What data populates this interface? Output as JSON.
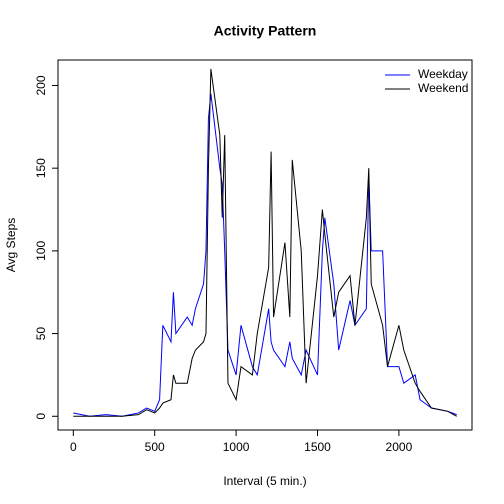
{
  "chart_data": {
    "type": "line",
    "title": "Activity Pattern",
    "x_label": "Interval (5 min.)",
    "y_label": "Avg Steps",
    "x": [
      0,
      100,
      200,
      300,
      400,
      450,
      500,
      530,
      550,
      600,
      615,
      630,
      700,
      730,
      750,
      800,
      815,
      830,
      845,
      900,
      915,
      930,
      950,
      1000,
      1030,
      1100,
      1130,
      1200,
      1215,
      1230,
      1300,
      1330,
      1345,
      1400,
      1430,
      1500,
      1530,
      1545,
      1600,
      1630,
      1700,
      1730,
      1800,
      1815,
      1830,
      1900,
      1930,
      2000,
      2030,
      2100,
      2130,
      2200,
      2300,
      2355
    ],
    "series": [
      {
        "name": "Weekday",
        "color": "#0000ff",
        "values": [
          2,
          0,
          1,
          0,
          2,
          5,
          3,
          10,
          55,
          45,
          75,
          50,
          60,
          55,
          65,
          80,
          100,
          180,
          195,
          150,
          140,
          100,
          40,
          25,
          55,
          30,
          25,
          65,
          45,
          40,
          30,
          45,
          35,
          25,
          40,
          25,
          100,
          120,
          80,
          40,
          70,
          55,
          65,
          145,
          100,
          100,
          30,
          30,
          20,
          25,
          10,
          5,
          3,
          1
        ]
      },
      {
        "name": "Weekend",
        "color": "#000000",
        "values": [
          0,
          0,
          0,
          0,
          1,
          4,
          2,
          5,
          8,
          10,
          25,
          20,
          20,
          35,
          40,
          45,
          50,
          150,
          210,
          170,
          120,
          170,
          20,
          10,
          30,
          25,
          50,
          90,
          160,
          60,
          105,
          60,
          155,
          100,
          20,
          85,
          125,
          110,
          60,
          75,
          85,
          55,
          120,
          150,
          80,
          55,
          30,
          55,
          40,
          20,
          15,
          5,
          3,
          0
        ]
      }
    ],
    "xlim": [
      -94,
      2449
    ],
    "ylim": [
      -8.3,
      215.4
    ],
    "xticks": [
      0,
      500,
      1000,
      1500,
      2000
    ],
    "yticks": [
      0,
      50,
      100,
      150,
      200
    ],
    "legend": "topright"
  }
}
